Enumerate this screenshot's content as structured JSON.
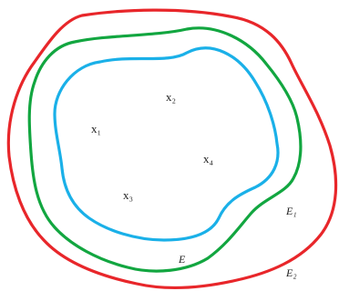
{
  "curves": {
    "outer": {
      "color": "#e8262a"
    },
    "middle": {
      "color": "#12a640"
    },
    "inner": {
      "color": "#1ab0e8"
    }
  },
  "points": [
    {
      "label": "x₁"
    },
    {
      "label": "x₂"
    },
    {
      "label": "x₃"
    },
    {
      "label": "x₄"
    }
  ],
  "set_labels": [
    {
      "label": "E"
    },
    {
      "label": "E₁"
    },
    {
      "label": "E₂"
    }
  ]
}
